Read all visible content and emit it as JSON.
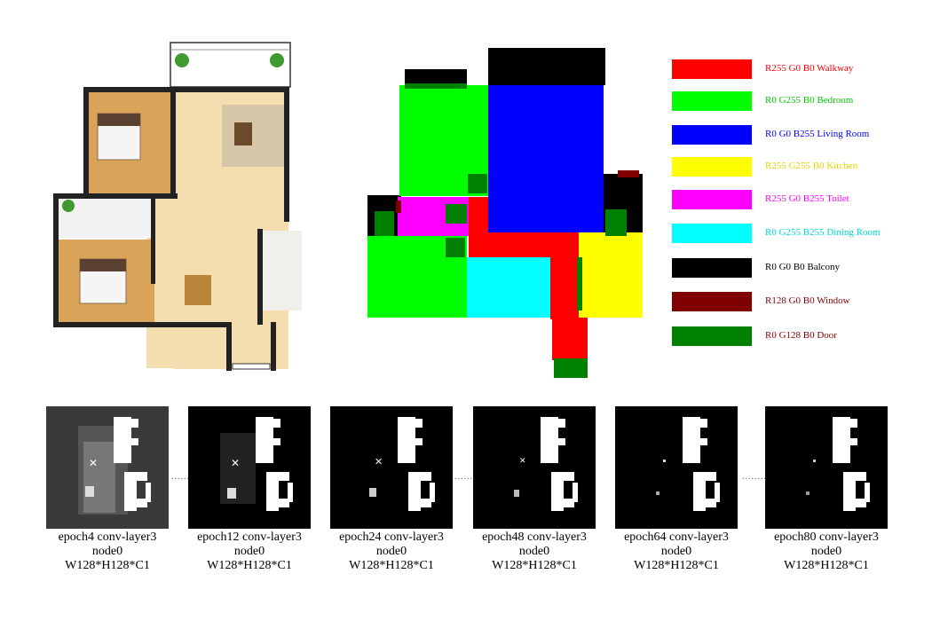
{
  "legend": [
    {
      "text": "R255 G0 B0 Walkway",
      "color": "#ff0000",
      "text_color": "#ff0000"
    },
    {
      "text": "R0 G255 B0 Bedroom",
      "color": "#00ff00",
      "text_color": "#00cc00"
    },
    {
      "text": "R0 G0 B255 Living Room",
      "color": "#0000ff",
      "text_color": "#0000ff"
    },
    {
      "text": "R255 G255 B0 Kitchen",
      "color": "#ffff00",
      "text_color": "#e6d400"
    },
    {
      "text": "R255 G0 B255 Toilet",
      "color": "#ff00ff",
      "text_color": "#ff00ff"
    },
    {
      "text": "R0 G255 B255 Dining Room",
      "color": "#00ffff",
      "text_color": "#00d8d8"
    },
    {
      "text": "R0 G0 B0 Balcony",
      "color": "#000000",
      "text_color": "#000000"
    },
    {
      "text": "R128 G0 B0 Window",
      "color": "#800000",
      "text_color": "#800000"
    },
    {
      "text": "R0 G128 B0 Door",
      "color": "#008000",
      "text_color": "#800000"
    }
  ],
  "epochs": [
    {
      "line1": "epoch4 conv-layer3",
      "line2": "node0",
      "line3": "W128*H128*C1"
    },
    {
      "line1": "epoch12 conv-layer3",
      "line2": "node0",
      "line3": "W128*H128*C1"
    },
    {
      "line1": "epoch24 conv-layer3",
      "line2": "node0",
      "line3": "W128*H128*C1"
    },
    {
      "line1": "epoch48 conv-layer3",
      "line2": "node0",
      "line3": "W128*H128*C1"
    },
    {
      "line1": "epoch64 conv-layer3",
      "line2": "node0",
      "line3": "W128*H128*C1"
    },
    {
      "line1": "epoch80 conv-layer3",
      "line2": "node0",
      "line3": "W128*H128*C1"
    }
  ],
  "separator": "..........",
  "colors": {
    "wood_floor": "#f4deb0",
    "bedroom_floor": "#d9a45a",
    "wall": "#222222",
    "plant": "#3f9a2f"
  }
}
